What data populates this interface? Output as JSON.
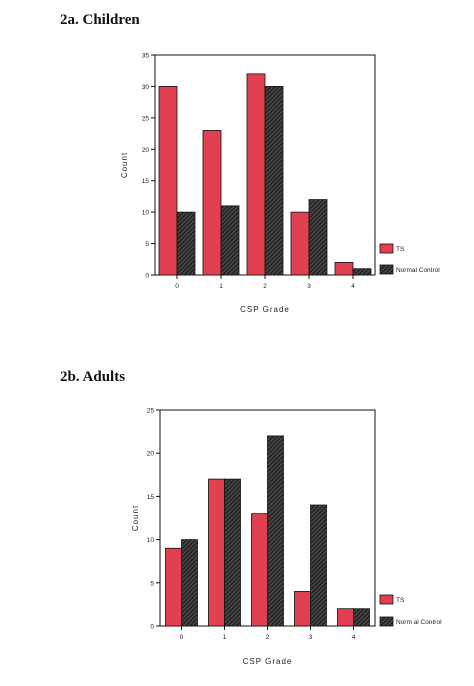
{
  "figure": {
    "panel_a_title": "2a.  Children",
    "panel_b_title": "2b.  Adults"
  },
  "colors": {
    "ts": "#e0404f",
    "normal_control_hatch": "#222222",
    "axis": "#111111"
  },
  "chart_data": [
    {
      "type": "bar",
      "title": "2a.  Children",
      "xlabel": "CSP Grade",
      "ylabel": "Count",
      "categories": [
        "0",
        "1",
        "2",
        "3",
        "4"
      ],
      "ylim": [
        0,
        35
      ],
      "yticks": [
        0,
        5,
        10,
        15,
        20,
        25,
        30,
        35
      ],
      "series": [
        {
          "name": "TS",
          "values": [
            30,
            23,
            32,
            10,
            2
          ]
        },
        {
          "name": "Normal Control",
          "values": [
            10,
            11,
            30,
            12,
            1
          ]
        }
      ],
      "legend": "bottom-right, outside plot",
      "grid": false
    },
    {
      "type": "bar",
      "title": "2b.  Adults",
      "xlabel": "CSP Grade",
      "ylabel": "Count",
      "categories": [
        "0",
        "1",
        "2",
        "3",
        "4"
      ],
      "ylim": [
        0,
        25
      ],
      "yticks": [
        0,
        5,
        10,
        15,
        20,
        25
      ],
      "series": [
        {
          "name": "TS",
          "values": [
            9,
            17,
            13,
            4,
            2
          ]
        },
        {
          "name": "Norm al Control",
          "values": [
            10,
            17,
            22,
            14,
            2
          ]
        }
      ],
      "legend": "bottom-right, outside plot",
      "grid": false
    }
  ]
}
